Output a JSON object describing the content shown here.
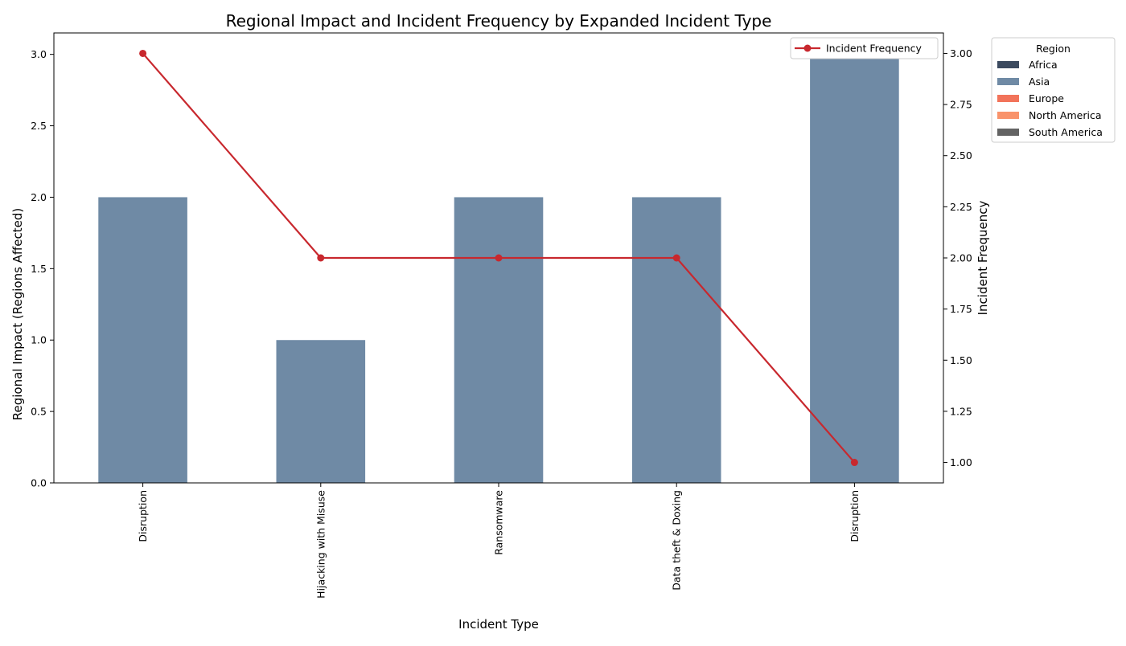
{
  "chart_data": {
    "type": "bar",
    "title": "Regional Impact and Incident Frequency by Expanded Incident Type",
    "xlabel": "Incident Type",
    "ylabel_left": "Regional Impact (Regions Affected)",
    "ylabel_right": "Incident Frequency",
    "categories": [
      "Disruption",
      "Hijacking with Misuse",
      "Ransomware",
      "Data theft & Doxing",
      "Disruption"
    ],
    "bar_series": [
      {
        "name": "Africa",
        "color": "#3b4a5f",
        "values": [
          0,
          0,
          0,
          0,
          0
        ]
      },
      {
        "name": "Asia",
        "color": "#6f8aa5",
        "values": [
          2,
          1,
          2,
          2,
          3
        ]
      },
      {
        "name": "Europe",
        "color": "#f2735a",
        "values": [
          0,
          0,
          0,
          0,
          0
        ]
      },
      {
        "name": "North America",
        "color": "#f9936b",
        "values": [
          0,
          0,
          0,
          0,
          0
        ]
      },
      {
        "name": "South America",
        "color": "#636363",
        "values": [
          0,
          0,
          0,
          0,
          0
        ]
      }
    ],
    "line_series": {
      "name": "Incident Frequency",
      "color": "#c8282e",
      "values": [
        3,
        2,
        2,
        2,
        1
      ]
    },
    "ylim_left": [
      0,
      3.15
    ],
    "yticks_left": [
      "0.0",
      "0.5",
      "1.0",
      "1.5",
      "2.0",
      "2.5",
      "3.0"
    ],
    "ylim_right": [
      0.9,
      3.1
    ],
    "yticks_right": [
      "1.00",
      "1.25",
      "1.50",
      "1.75",
      "2.00",
      "2.25",
      "2.50",
      "2.75",
      "3.00"
    ],
    "legend_title": "Region",
    "legend_placement": "outside-right",
    "line_legend_placement": "top-right",
    "grid": false
  }
}
